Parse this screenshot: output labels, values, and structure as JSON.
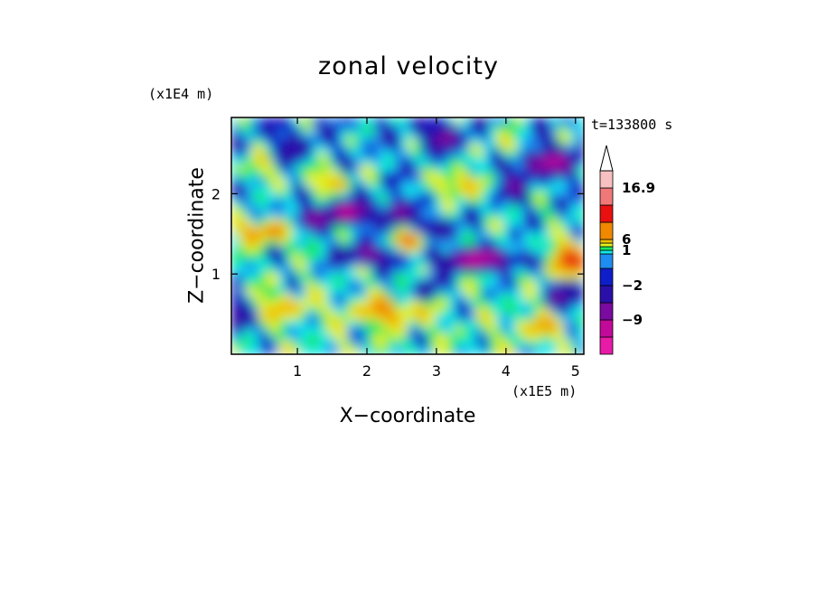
{
  "chart_data": {
    "type": "heatmap",
    "title": "zonal velocity",
    "xlabel": "X−coordinate",
    "ylabel": "Z−coordinate",
    "x_unit": "(x1E5 m)",
    "y_unit": "(x1E4 m)",
    "time_label": "t=133800 s",
    "xlim": [
      0.05,
      5.12
    ],
    "ylim": [
      0.0,
      2.95
    ],
    "x_ticks": [
      {
        "value": 1,
        "label": "1"
      },
      {
        "value": 2,
        "label": "2"
      },
      {
        "value": 3,
        "label": "3"
      },
      {
        "value": 4,
        "label": "4"
      },
      {
        "value": 5,
        "label": "5"
      }
    ],
    "y_ticks": [
      {
        "value": 1,
        "label": "1"
      },
      {
        "value": 2,
        "label": "2"
      }
    ],
    "colorbar": {
      "levels": [
        -16.9,
        -12,
        -9,
        -6,
        -2,
        -1,
        0,
        1,
        2,
        4,
        6,
        9,
        12,
        16.9
      ],
      "colors": [
        "#e81aa8",
        "#c20a9a",
        "#7a0aa0",
        "#2a10a8",
        "#0e1ec8",
        "#1e8cf0",
        "#10e8e8",
        "#18e860",
        "#e0f020",
        "#f0c000",
        "#f08800",
        "#e81010",
        "#f07878",
        "#f8c0c0"
      ],
      "labels": [
        {
          "value": "16.9",
          "level": 16.9
        },
        {
          "value": "6",
          "level": 6
        },
        {
          "value": "1",
          "level": 1
        },
        {
          "value": "−2",
          "level": -2
        },
        {
          "value": "−9",
          "level": -9
        }
      ],
      "extend": "max"
    }
  }
}
